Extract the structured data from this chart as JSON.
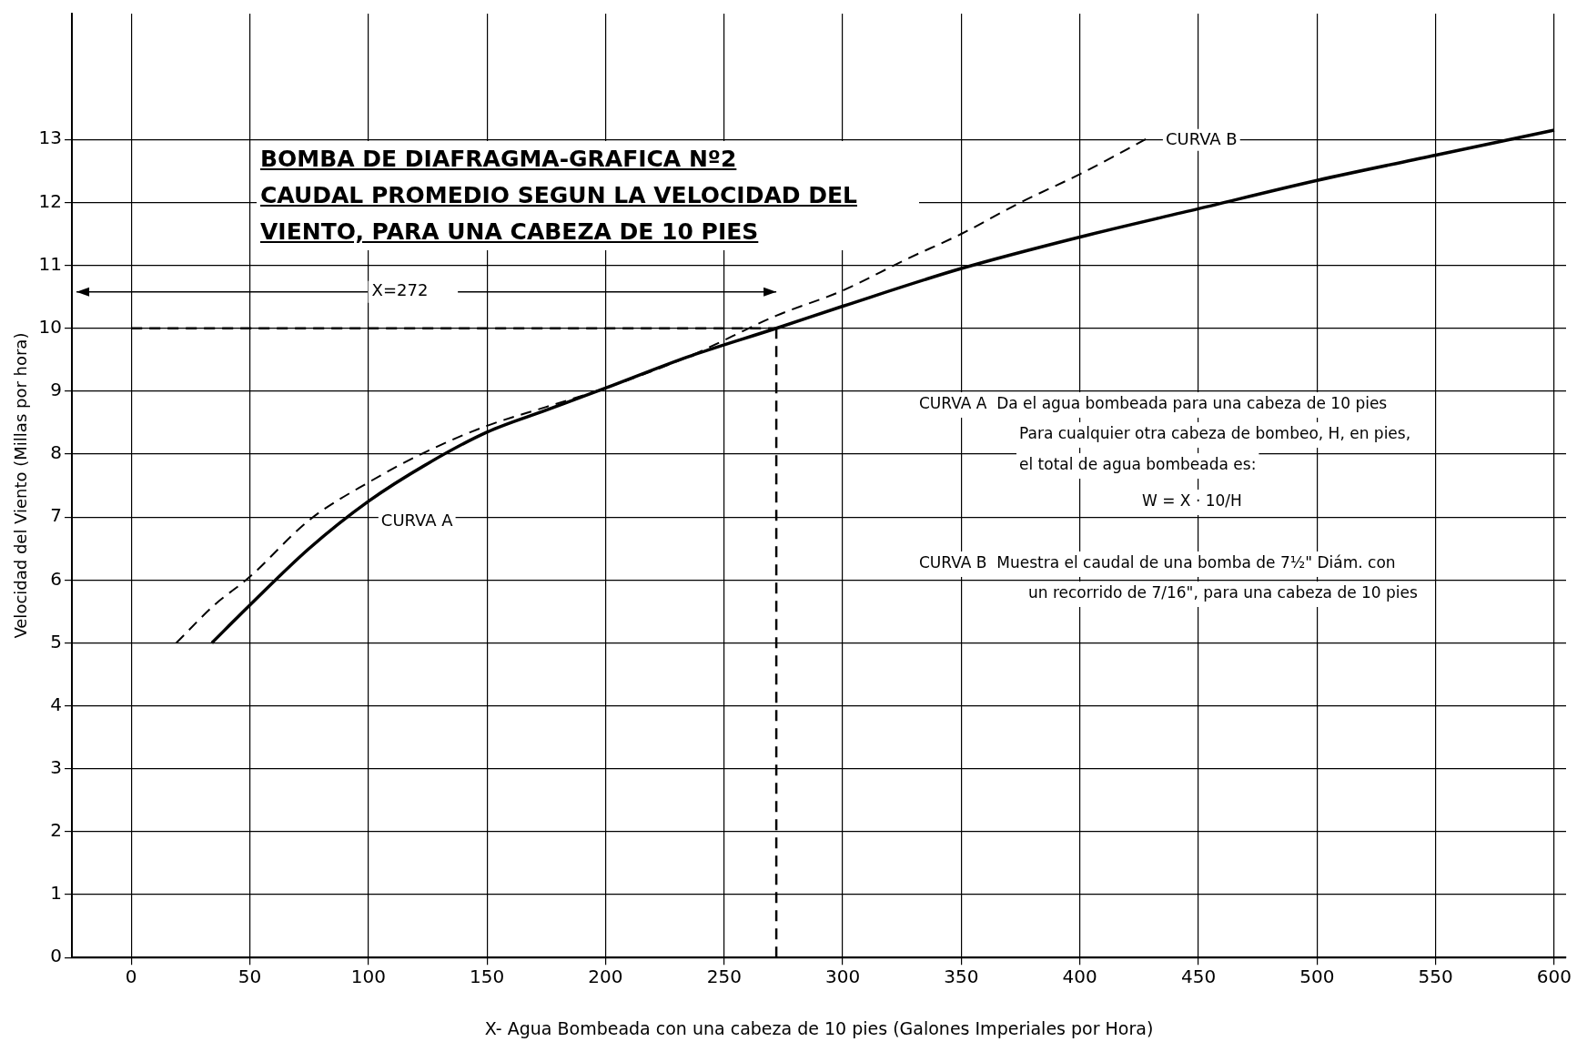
{
  "chart_data": {
    "type": "line",
    "title": "BOMBA DE DIAFRAGMA-GRAFICA Nº2",
    "subtitle": "CAUDAL PROMEDIO SEGUN LA VELOCIDAD DEL VIENTO, PARA UNA CABEZA DE 10 PIES",
    "xlabel": "X- Agua Bombeada con una cabeza de 10 pies (Galones Imperiales por Hora)",
    "ylabel": "Velocidad del Viento (Millas por hora)",
    "series": [
      {
        "name": "CURVA A",
        "color": "#000000",
        "line_style": "solid",
        "x": [
          34,
          50,
          75,
          100,
          125,
          150,
          175,
          200,
          235,
          272,
          300,
          350,
          400,
          450,
          500,
          550,
          600
        ],
        "values": [
          5,
          5.6,
          6.5,
          7.25,
          7.85,
          8.35,
          8.7,
          9.05,
          9.55,
          10,
          10.35,
          10.95,
          11.45,
          11.9,
          12.35,
          12.75,
          13.15
        ]
      },
      {
        "name": "CURVA B",
        "color": "#000000",
        "line_style": "dashed",
        "x": [
          19,
          35,
          50,
          75,
          100,
          125,
          150,
          175,
          200,
          235,
          272,
          300,
          327,
          350,
          375,
          400,
          430
        ],
        "values": [
          5,
          5.6,
          6.05,
          6.95,
          7.55,
          8.05,
          8.45,
          8.75,
          9.05,
          9.55,
          10.2,
          10.6,
          11.1,
          11.5,
          12,
          12.45,
          13.05
        ]
      }
    ],
    "xlim": [
      -25,
      605
    ],
    "ylim": [
      0,
      15
    ],
    "xticks": [
      0,
      50,
      100,
      150,
      200,
      250,
      300,
      350,
      400,
      450,
      500,
      550,
      600
    ],
    "yticks": [
      0,
      1,
      2,
      3,
      4,
      5,
      6,
      7,
      8,
      9,
      10,
      11,
      12,
      13
    ],
    "grid": true,
    "marker": "none",
    "legend": false,
    "ref_lines": [
      {
        "axis": "y",
        "value": 10,
        "line_style": "dashed"
      },
      {
        "axis": "x",
        "value": 272,
        "line_style": "dashed"
      }
    ],
    "annotations": [
      "X=272",
      "CURVA A  Da el agua bombeada para una cabeza de 10 pies",
      "Para cualquier otra cabeza de bombeo, H, en pies,",
      "el total de agua bombeada es:",
      "W = X · 10/H",
      "CURVA B  Muestra el caudal de una bomba de 7½\" Diám. con",
      "un recorrido de 7/16\", para una cabeza de 10 pies"
    ]
  }
}
